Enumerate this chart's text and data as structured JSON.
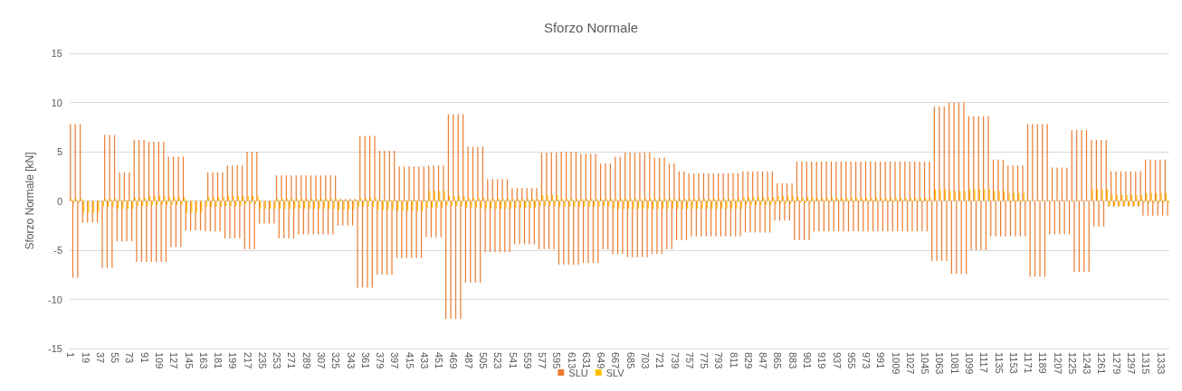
{
  "chart_data": {
    "type": "bar",
    "title": "Sforzo Normale",
    "ylabel": "Sforzo Normale [kN]",
    "categories": [
      "1",
      null,
      null,
      null,
      null,
      null,
      "19",
      null,
      null,
      null,
      null,
      null,
      "37",
      null,
      null,
      null,
      null,
      null,
      "55",
      null,
      null,
      null,
      null,
      null,
      "73",
      null,
      null,
      null,
      null,
      null,
      "91",
      null,
      null,
      null,
      null,
      null,
      "109",
      null,
      null,
      null,
      null,
      null,
      "127",
      null,
      null,
      null,
      null,
      null,
      "145",
      null,
      null,
      null,
      null,
      null,
      "163",
      null,
      null,
      null,
      null,
      null,
      "181",
      null,
      null,
      null,
      null,
      null,
      "199",
      null,
      null,
      null,
      null,
      null,
      "217",
      null,
      null,
      null,
      null,
      null,
      "235",
      null,
      null,
      null,
      null,
      null,
      "253",
      null,
      null,
      null,
      null,
      null,
      "271",
      null,
      null,
      null,
      null,
      null,
      "289",
      null,
      null,
      null,
      null,
      null,
      "307",
      null,
      null,
      null,
      null,
      null,
      "325",
      null,
      null,
      null,
      null,
      null,
      "343",
      null,
      null,
      null,
      null,
      null,
      "361",
      null,
      null,
      null,
      null,
      null,
      "379",
      null,
      null,
      null,
      null,
      null,
      "397",
      null,
      null,
      null,
      null,
      null,
      "415",
      null,
      null,
      null,
      null,
      null,
      "433",
      null,
      null,
      null,
      null,
      null,
      "451",
      null,
      null,
      null,
      null,
      null,
      "469",
      null,
      null,
      null,
      null,
      null,
      "487",
      null,
      null,
      null,
      null,
      null,
      "505",
      null,
      null,
      null,
      null,
      null,
      "523",
      null,
      null,
      null,
      null,
      null,
      "541",
      null,
      null,
      null,
      null,
      null,
      "559",
      null,
      null,
      null,
      null,
      null,
      "577",
      null,
      null,
      null,
      null,
      null,
      "595",
      null,
      null,
      null,
      null,
      null,
      "613",
      null,
      null,
      null,
      null,
      null,
      "631",
      null,
      null,
      null,
      null,
      null,
      "649",
      null,
      null,
      null,
      null,
      null,
      "667",
      null,
      null,
      null,
      null,
      null,
      "685",
      null,
      null,
      null,
      null,
      null,
      "703",
      null,
      null,
      null,
      null,
      null,
      "721",
      null,
      null,
      null,
      null,
      null,
      "739",
      null,
      null,
      null,
      null,
      null,
      "757",
      null,
      null,
      null,
      null,
      null,
      "775",
      null,
      null,
      null,
      null,
      null,
      "793",
      null,
      null,
      null,
      null,
      null,
      "811",
      null,
      null,
      null,
      null,
      null,
      "829",
      null,
      null,
      null,
      null,
      null,
      "847",
      null,
      null,
      null,
      null,
      null,
      "865",
      null,
      null,
      null,
      null,
      null,
      "883",
      null,
      null,
      null,
      null,
      null,
      "901",
      null,
      null,
      null,
      null,
      null,
      "919",
      null,
      null,
      null,
      null,
      null,
      "937",
      null,
      null,
      null,
      null,
      null,
      "955",
      null,
      null,
      null,
      null,
      null,
      "973",
      null,
      null,
      null,
      null,
      null,
      "991",
      null,
      null,
      null,
      null,
      null,
      "1009",
      null,
      null,
      null,
      null,
      null,
      "1027",
      null,
      null,
      null,
      null,
      null,
      "1045",
      null,
      null,
      null,
      null,
      null,
      "1063",
      null,
      null,
      null,
      null,
      null,
      "1081",
      null,
      null,
      null,
      null,
      null,
      "1099",
      null,
      null,
      null,
      null,
      null,
      "1117",
      null,
      null,
      null,
      null,
      null,
      "1135",
      null,
      null,
      null,
      null,
      null,
      "1153",
      null,
      null,
      null,
      null,
      null,
      "1171",
      null,
      null,
      null,
      null,
      null,
      "1189",
      null,
      null,
      null,
      null,
      null,
      "1207",
      null,
      null,
      null,
      null,
      null,
      "1225",
      null,
      null,
      null,
      null,
      null,
      "1243",
      null,
      null,
      null,
      null,
      null,
      "1261",
      null,
      null,
      null,
      null,
      null,
      "1279",
      null,
      null,
      null,
      null,
      null,
      "1297",
      null,
      null,
      null,
      null,
      null,
      "1315",
      null,
      null,
      null,
      null,
      null,
      "1333",
      null,
      null,
      null
    ],
    "series": [
      {
        "name": "SLU",
        "color": "#ed7d31",
        "values": [
          7.8,
          -7.8,
          7.8,
          -7.8,
          7.8,
          -2.2,
          0,
          -2.2,
          0,
          -2.2,
          0,
          -2.2,
          0,
          -6.8,
          6.7,
          -6.8,
          6.7,
          -6.8,
          6.7,
          -4.1,
          2.9,
          -4.1,
          2.9,
          -4.1,
          2.9,
          -4.1,
          6.2,
          -6.2,
          6.2,
          -6.2,
          6.2,
          -6.2,
          6,
          -6.2,
          6,
          -6.2,
          6,
          -6.2,
          6,
          -6.2,
          4.5,
          -4.7,
          4.5,
          -4.7,
          4.5,
          -4.7,
          4.5,
          -3,
          0,
          -3,
          0,
          -3,
          0,
          -3,
          0,
          -3.1,
          2.9,
          -3.1,
          2.9,
          -3.1,
          2.9,
          -3.1,
          2.9,
          -3.8,
          3.6,
          -3.8,
          3.6,
          -3.8,
          3.6,
          -3.8,
          3.6,
          -4.9,
          5,
          -4.9,
          5,
          -4.9,
          5,
          -2.3,
          0,
          -2.3,
          0,
          -2.3,
          0,
          -2.3,
          2.6,
          -3.8,
          2.6,
          -3.8,
          2.6,
          -3.8,
          2.6,
          -3.8,
          2.6,
          -3.4,
          2.6,
          -3.4,
          2.6,
          -3.4,
          2.6,
          -3.4,
          2.6,
          -3.4,
          2.6,
          -3.4,
          2.6,
          -3.4,
          2.6,
          -3.4,
          2.6,
          -2.5,
          0.2,
          -2.5,
          0.2,
          -2.5,
          0.2,
          -2.5,
          0.2,
          -8.8,
          6.6,
          -8.8,
          6.6,
          -8.8,
          6.6,
          -8.8,
          6.6,
          -7.5,
          5.1,
          -7.5,
          5.1,
          -7.5,
          5.1,
          -7.5,
          5.1,
          -5.8,
          3.5,
          -5.8,
          3.5,
          -5.8,
          3.5,
          -5.8,
          3.5,
          -5.8,
          3.5,
          -5.8,
          3.5,
          -3.7,
          3.6,
          -3.7,
          3.6,
          -3.7,
          3.6,
          -3.7,
          3.6,
          -12,
          8.8,
          -12,
          8.8,
          -12,
          8.8,
          -12,
          8.8,
          -8.3,
          5.5,
          -8.3,
          5.5,
          -8.3,
          5.5,
          -8.3,
          5.5,
          -5.2,
          2.2,
          -5.2,
          2.2,
          -5.2,
          2.2,
          -5.2,
          2.2,
          -5.2,
          2.2,
          -5.2,
          1.3,
          -4.4,
          1.3,
          -4.4,
          1.3,
          -4.4,
          1.3,
          -4.4,
          1.3,
          -4.4,
          1.3,
          -4.9,
          4.9,
          -4.9,
          4.9,
          -4.9,
          4.9,
          -4.9,
          4.9,
          -6.5,
          5,
          -6.5,
          5,
          -6.5,
          5,
          -6.5,
          5,
          -6.5,
          4.8,
          -6.3,
          4.8,
          -6.3,
          4.8,
          -6.3,
          4.8,
          -6.3,
          3.8,
          -4.9,
          3.8,
          -4.9,
          3.8,
          -5.4,
          4.5,
          -5.4,
          4.5,
          -5.4,
          4.9,
          -5.7,
          4.9,
          -5.7,
          4.9,
          -5.7,
          4.9,
          -5.7,
          4.9,
          -5.7,
          4.9,
          -5.4,
          4.4,
          -5.4,
          4.4,
          -5.4,
          4.4,
          -4.9,
          3.8,
          -4.9,
          3.8,
          -4,
          3,
          -4,
          3,
          -4,
          2.8,
          -3.6,
          2.8,
          -3.6,
          2.8,
          -3.6,
          2.8,
          -3.6,
          2.8,
          -3.6,
          2.8,
          -3.6,
          2.8,
          -3.6,
          2.8,
          -3.6,
          2.8,
          -3.6,
          2.8,
          -3.6,
          2.8,
          -3.6,
          3,
          -3.2,
          3,
          -3.2,
          3,
          -3.2,
          3,
          -3.2,
          3,
          -3.2,
          3,
          -3.2,
          3,
          -2,
          1.8,
          -2,
          1.8,
          -2,
          1.8,
          -2,
          1.8,
          -4,
          4,
          -4,
          4,
          -4,
          4,
          -4,
          4,
          -3.1,
          4,
          -3.1,
          4,
          -3.1,
          4,
          -3.1,
          4,
          -3.1,
          4,
          -3.1,
          4,
          -3.1,
          4,
          -3.1,
          4,
          -3.1,
          4,
          -3.1,
          4,
          -3.1,
          4,
          -3.1,
          4,
          -3.1,
          4,
          -3.1,
          4,
          -3.1,
          4,
          -3.1,
          4,
          -3.1,
          4,
          -3.1,
          4,
          -3.1,
          4,
          -3.1,
          4,
          -3.1,
          4,
          -3.1,
          4,
          -3.1,
          4,
          -3.1,
          4,
          -6.1,
          9.6,
          -6.1,
          9.6,
          -6.1,
          9.6,
          -6.1,
          10,
          -7.4,
          10,
          -7.4,
          10,
          -7.4,
          10,
          -7.4,
          8.6,
          -5,
          8.6,
          -5,
          8.6,
          -5,
          8.6,
          -5,
          8.6,
          -3.6,
          4.2,
          -3.6,
          4.2,
          -3.6,
          4.2,
          -3.6,
          3.6,
          -3.6,
          3.6,
          -3.6,
          3.6,
          -3.6,
          3.6,
          -3.6,
          7.8,
          -7.7,
          7.8,
          -7.7,
          7.8,
          -7.7,
          7.8,
          -7.7,
          7.8,
          -3.4,
          3.4,
          -3.4,
          3.4,
          -3.4,
          3.4,
          -3.4,
          3.4,
          -3.4,
          7.2,
          -7.2,
          7.2,
          -7.2,
          7.2,
          -7.2,
          7.2,
          -7.2,
          6.2,
          -2.6,
          6.2,
          -2.6,
          6.2,
          -2.6,
          6.2,
          -0.6,
          3,
          -0.6,
          3,
          -0.6,
          3,
          -0.6,
          3,
          -0.6,
          3,
          -0.6,
          3,
          -0.6,
          3,
          -1.5,
          4.2,
          -1.5,
          4.2,
          -1.5,
          4.2,
          -1.5,
          4.2,
          -1.5,
          4.2,
          -1.5
        ]
      },
      {
        "name": "SLV",
        "color": "#ffc000",
        "values": [
          0.2,
          -0.2,
          0.2,
          -0.2,
          0.2,
          -1.2,
          0,
          -1.2,
          0,
          -1.2,
          0,
          -1.2,
          0,
          -0.6,
          0.2,
          -0.6,
          0.2,
          -0.6,
          0.2,
          -0.8,
          0.1,
          -0.8,
          0.1,
          -0.8,
          0.1,
          -0.8,
          0.3,
          -0.5,
          0.3,
          -0.5,
          0.3,
          -0.5,
          0.5,
          -0.4,
          0.5,
          -0.4,
          0.5,
          -0.4,
          0.5,
          -0.4,
          0.4,
          -0.4,
          0.4,
          -0.4,
          0.4,
          -0.4,
          0.4,
          -1.2,
          0,
          -1.2,
          0,
          -1.2,
          0,
          -1.2,
          0,
          -0.6,
          0.4,
          -0.6,
          0.4,
          -0.6,
          0.4,
          -0.6,
          0.4,
          -0.5,
          0.5,
          -0.5,
          0.5,
          -0.5,
          0.5,
          -0.5,
          0.5,
          -0.3,
          0.5,
          -0.3,
          0.5,
          -0.3,
          0.5,
          -0.8,
          0,
          -0.8,
          0,
          -0.8,
          0,
          -0.8,
          0.2,
          -0.8,
          0.2,
          -0.8,
          0.2,
          -0.8,
          0.2,
          -0.8,
          0.2,
          -0.8,
          0.2,
          -0.8,
          0.2,
          -0.8,
          0.2,
          -0.8,
          0.2,
          -0.8,
          0.2,
          -0.8,
          0.2,
          -0.8,
          0.2,
          -0.8,
          0.2,
          -0.9,
          0.1,
          -0.9,
          0.1,
          -0.9,
          0.1,
          -0.9,
          0.1,
          -0.6,
          0.3,
          -0.6,
          0.3,
          -0.6,
          0.3,
          -0.6,
          0.3,
          -0.9,
          0.1,
          -0.9,
          0.1,
          -0.9,
          0.1,
          -0.9,
          0.1,
          -1,
          0.1,
          -1,
          0.1,
          -1,
          0.1,
          -1,
          0.1,
          -1,
          0.1,
          -1,
          0.1,
          -0.7,
          1,
          -0.7,
          1,
          -0.7,
          1,
          -0.7,
          1,
          -0.5,
          0.5,
          -0.5,
          0.5,
          -0.5,
          0.5,
          -0.5,
          0.5,
          -0.7,
          0.3,
          -0.7,
          0.3,
          -0.7,
          0.3,
          -0.7,
          0.3,
          -0.8,
          0.2,
          -0.8,
          0.2,
          -0.8,
          0.2,
          -0.8,
          0.2,
          -0.8,
          0.2,
          -0.8,
          0.2,
          -0.7,
          0.2,
          -0.7,
          0.2,
          -0.7,
          0.2,
          -0.7,
          0.2,
          -0.7,
          0.2,
          -0.5,
          0.6,
          -0.5,
          0.6,
          -0.5,
          0.6,
          -0.5,
          0.6,
          -0.6,
          0.2,
          -0.6,
          0.2,
          -0.6,
          0.2,
          -0.6,
          0.2,
          -0.6,
          0.2,
          -0.6,
          0.2,
          -0.6,
          0.2,
          -0.6,
          0.2,
          -0.6,
          0.2,
          -0.5,
          0.2,
          -0.5,
          0.2,
          -0.8,
          0.2,
          -0.8,
          0.2,
          -0.8,
          0.2,
          -0.8,
          0.2,
          -0.8,
          0.2,
          -0.8,
          0.2,
          -0.8,
          0.2,
          -0.8,
          0.2,
          -0.8,
          0.2,
          -0.8,
          0.2,
          -0.8,
          0.2,
          -0.8,
          0.2,
          -0.8,
          0.2,
          -0.8,
          0.2,
          -0.8,
          0.2,
          -0.8,
          0.2,
          -0.8,
          0.2,
          -0.8,
          0.2,
          -0.8,
          0.2,
          -0.8,
          0.2,
          -0.8,
          0.2,
          -0.8,
          0.2,
          -0.8,
          0.2,
          -0.8,
          0.2,
          -0.8,
          0.2,
          -0.8,
          0.2,
          -0.8,
          0.4,
          -0.4,
          0.4,
          -0.4,
          0.4,
          -0.4,
          0.4,
          -0.4,
          0.4,
          -0.4,
          0.4,
          -0.4,
          0.4,
          -0.3,
          0.5,
          -0.3,
          0.5,
          -0.3,
          0.5,
          -0.3,
          0.5,
          -0.2,
          0.4,
          -0.2,
          0.4,
          -0.2,
          0.4,
          -0.2,
          0.4,
          -0.1,
          0.3,
          -0.1,
          0.3,
          -0.1,
          0.3,
          -0.1,
          0.3,
          -0.1,
          0.3,
          -0.1,
          0.3,
          -0.1,
          0.3,
          -0.1,
          0.3,
          -0.1,
          0.3,
          -0.1,
          0.3,
          -0.1,
          0.3,
          -0.1,
          0.3,
          -0.1,
          0.3,
          -0.1,
          0.3,
          -0.1,
          0.3,
          -0.1,
          0.3,
          -0.1,
          0.3,
          -0.1,
          0.3,
          -0.1,
          0.3,
          -0.1,
          0.3,
          -0.1,
          0.3,
          -0.1,
          0.3,
          -0.1,
          0.3,
          -0.1,
          0.3,
          0,
          1.2,
          0,
          1.2,
          0,
          1.2,
          0,
          1,
          0,
          1,
          0,
          1,
          0,
          1,
          0,
          1.2,
          0,
          1.2,
          0,
          1.2,
          0,
          1.2,
          0,
          1.2,
          0,
          1,
          0,
          1,
          0,
          1,
          0,
          0.8,
          -0.1,
          0.8,
          -0.1,
          0.8,
          -0.1,
          0.8,
          -0.1,
          0.1,
          0,
          0.1,
          0,
          0.1,
          0,
          0.1,
          0,
          0.1,
          0,
          0.1,
          0,
          0.1,
          0,
          0.1,
          0,
          0.1,
          0,
          0.1,
          0,
          0.1,
          0,
          0.1,
          0,
          0.1,
          0,
          1.2,
          0,
          1.2,
          0,
          1.2,
          0,
          1.2,
          -0.5,
          0.6,
          -0.5,
          0.6,
          -0.5,
          0.6,
          -0.5,
          0.6,
          -0.5,
          0.6,
          -0.5,
          0.6,
          -0.5,
          0.6,
          -0.2,
          0.8,
          -0.2,
          0.8,
          -0.2,
          0.8,
          -0.2,
          0.8,
          -0.2,
          0.8,
          -0.2
        ]
      }
    ],
    "ylim": [
      -15,
      15
    ],
    "yticks": [
      -15,
      -10,
      -5,
      0,
      5,
      10,
      15
    ],
    "grid": "y",
    "legend": "bottom"
  }
}
